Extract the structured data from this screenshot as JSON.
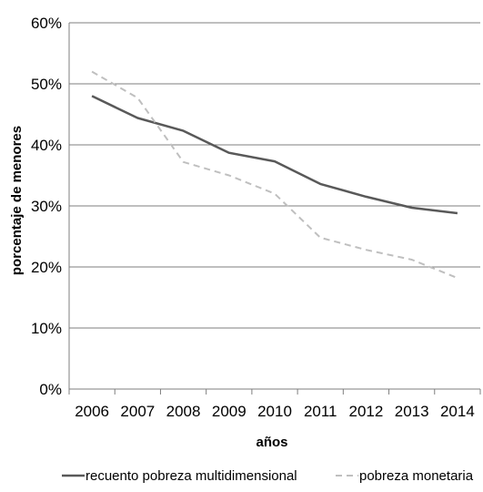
{
  "chart_data": {
    "type": "line",
    "title": "",
    "xlabel": "años",
    "ylabel": "porcentaje de menores",
    "categories": [
      "2006",
      "2007",
      "2008",
      "2009",
      "2010",
      "2011",
      "2012",
      "2013",
      "2014"
    ],
    "ylim": [
      0,
      60
    ],
    "yticks": [
      "0%",
      "10%",
      "20%",
      "30%",
      "40%",
      "50%",
      "60%"
    ],
    "grid": true,
    "legend_position": "bottom",
    "series": [
      {
        "name": "recuento pobreza multidimensional",
        "values": [
          48.0,
          44.4,
          42.3,
          38.7,
          37.3,
          33.6,
          31.5,
          29.7,
          28.8
        ],
        "color": "#595959",
        "style": "solid"
      },
      {
        "name": "pobreza monetaria",
        "values": [
          52.0,
          47.7,
          37.2,
          35.0,
          32.0,
          24.8,
          22.8,
          21.2,
          18.2
        ],
        "color": "#bfbfbf",
        "style": "dashed"
      }
    ]
  }
}
